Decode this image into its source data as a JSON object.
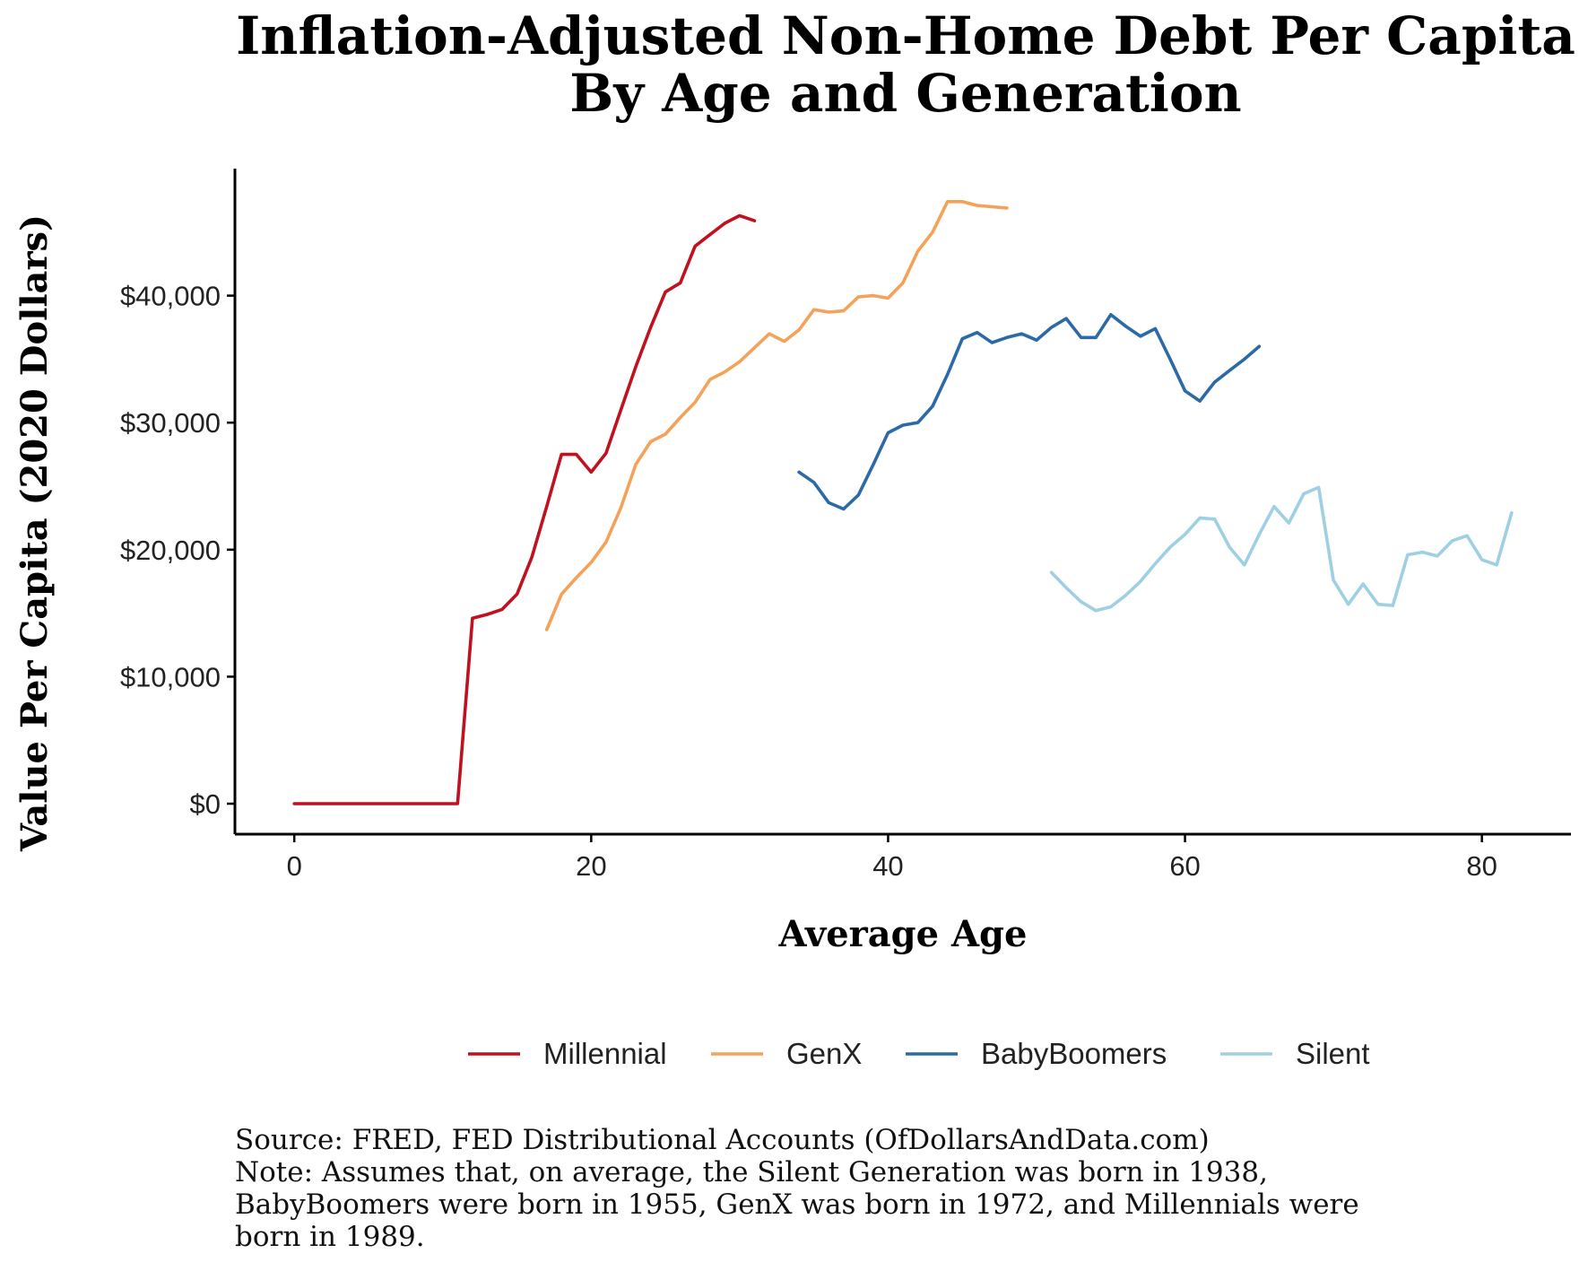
{
  "title": {
    "line1": "Inflation-Adjusted Non-Home Debt Per Capita",
    "line2": "By Age and Generation"
  },
  "caption": {
    "source": "Source:  FRED, FED Distributional Accounts (OfDollarsAndData.com)",
    "note_lines": [
      "Note: Assumes that, on average, the Silent Generation was born in 1938,",
      "BabyBoomers were born in 1955, GenX was born in 1972, and Millennials were",
      "born in 1989."
    ]
  },
  "chart_data": {
    "type": "line",
    "title": "Inflation-Adjusted Non-Home Debt Per Capita By Age and Generation",
    "xlabel": "Average Age",
    "ylabel": "Value Per Capita (2020 Dollars)",
    "xlim": [
      -4,
      86
    ],
    "ylim": [
      -2400,
      50000
    ],
    "x_ticks": [
      0,
      20,
      40,
      60,
      80
    ],
    "x_tick_labels": [
      "0",
      "20",
      "40",
      "60",
      "80"
    ],
    "y_ticks": [
      0,
      10000,
      20000,
      30000,
      40000
    ],
    "y_tick_labels": [
      "$0",
      "$10,000",
      "$20,000",
      "$30,000",
      "$40,000"
    ],
    "grid": false,
    "legend_position": "bottom",
    "series": [
      {
        "name": "Millennial",
        "color": "#c0111f",
        "x": [
          0,
          1,
          2,
          3,
          4,
          5,
          6,
          7,
          8,
          9,
          10,
          11,
          12,
          13,
          14,
          15,
          16,
          17,
          18,
          19,
          20,
          21,
          22,
          23,
          24,
          25,
          26,
          27,
          28,
          29,
          30,
          31
        ],
        "y": [
          0,
          0,
          0,
          0,
          0,
          0,
          0,
          0,
          0,
          0,
          0,
          0,
          14600,
          14900,
          15300,
          16500,
          19400,
          23400,
          27500,
          27500,
          26100,
          27600,
          31000,
          34400,
          37500,
          40300,
          41000,
          43900,
          44800,
          45700,
          46300,
          45900
        ]
      },
      {
        "name": "GenX",
        "color": "#f4a259",
        "x": [
          17,
          18,
          19,
          20,
          21,
          22,
          23,
          24,
          25,
          26,
          27,
          28,
          29,
          30,
          31,
          32,
          33,
          34,
          35,
          36,
          37,
          38,
          39,
          40,
          41,
          42,
          43,
          44,
          45,
          46,
          47,
          48
        ],
        "y": [
          13700,
          16500,
          17800,
          19000,
          20600,
          23300,
          26700,
          28500,
          29100,
          30400,
          31600,
          33400,
          34000,
          34800,
          35900,
          37000,
          36400,
          37300,
          38900,
          38700,
          38800,
          39900,
          40000,
          39800,
          41000,
          43500,
          45000,
          47400,
          47400,
          47100,
          47000,
          46900
        ]
      },
      {
        "name": "BabyBoomers",
        "color": "#2b6aa6",
        "x": [
          34,
          35,
          36,
          37,
          38,
          39,
          40,
          41,
          42,
          43,
          44,
          45,
          46,
          47,
          48,
          49,
          50,
          51,
          52,
          53,
          54,
          55,
          56,
          57,
          58,
          59,
          60,
          61,
          62,
          63,
          64,
          65
        ],
        "y": [
          26100,
          25300,
          23700,
          23200,
          24300,
          26700,
          29200,
          29800,
          30000,
          31300,
          33800,
          36600,
          37100,
          36300,
          36700,
          37000,
          36500,
          37500,
          38200,
          36700,
          36700,
          38500,
          37600,
          36800,
          37400,
          35000,
          32500,
          31700,
          33200,
          34100,
          35000,
          36000
        ]
      },
      {
        "name": "Silent",
        "color": "#9ecfe3",
        "x": [
          51,
          52,
          53,
          54,
          55,
          56,
          57,
          58,
          59,
          60,
          61,
          62,
          63,
          64,
          65,
          66,
          67,
          68,
          69,
          70,
          71,
          72,
          73,
          74,
          75,
          76,
          77,
          78,
          79,
          80,
          81,
          82
        ],
        "y": [
          18200,
          17000,
          15900,
          15200,
          15500,
          16400,
          17500,
          18900,
          20200,
          21200,
          22500,
          22400,
          20200,
          18800,
          21200,
          23400,
          22100,
          24400,
          24900,
          17600,
          15700,
          17300,
          15700,
          15600,
          19600,
          19800,
          19500,
          20700,
          21100,
          19200,
          18800,
          22900
        ]
      }
    ]
  }
}
